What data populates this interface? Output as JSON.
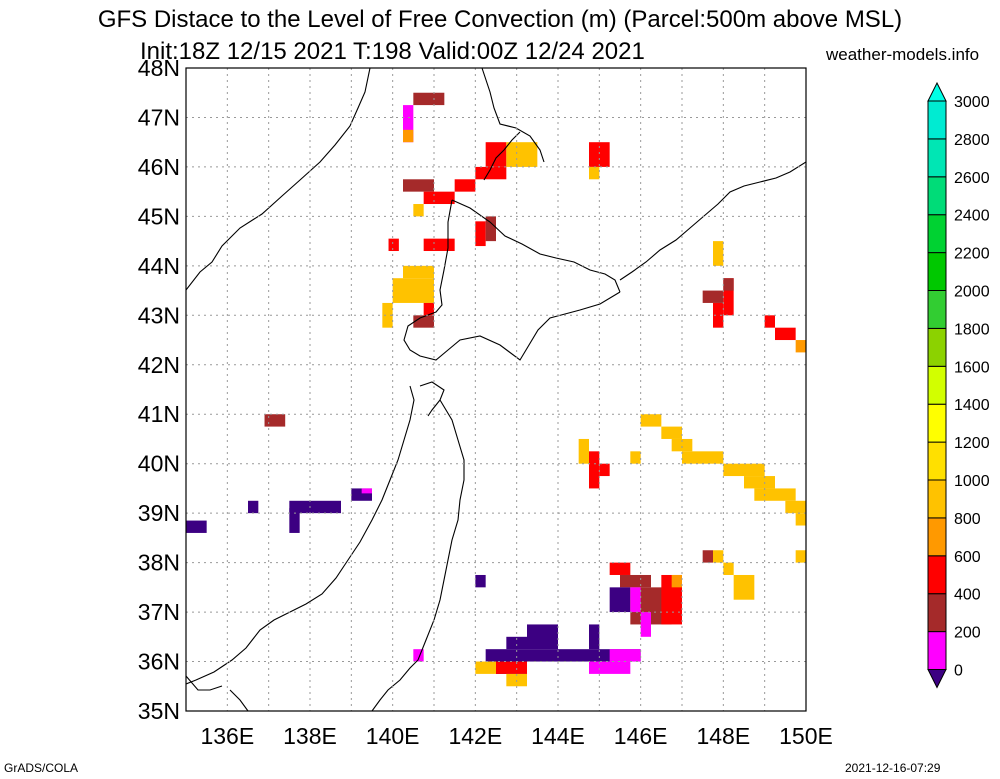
{
  "title": "GFS Distace to the Level of Free Convection (m) (Parcel:500m above MSL)",
  "subtitle": "Init:18Z 12/15 2021 T:198 Valid:00Z 12/24 2021",
  "credit": "weather-models.info",
  "footer_left": "GrADS/COLA",
  "footer_right": "2021-12-16-07:29",
  "map": {
    "lon_range": [
      135,
      150
    ],
    "lat_range": [
      35,
      48
    ],
    "lon_labels": [
      "136E",
      "138E",
      "140E",
      "142E",
      "144E",
      "146E",
      "148E",
      "150E"
    ],
    "lat_labels": [
      "35N",
      "36N",
      "37N",
      "38N",
      "39N",
      "40N",
      "41N",
      "42N",
      "43N",
      "44N",
      "45N",
      "46N",
      "47N",
      "48N"
    ]
  },
  "colorbar": {
    "labels": [
      "0",
      "200",
      "400",
      "600",
      "800",
      "1000",
      "1200",
      "1400",
      "1600",
      "1800",
      "2000",
      "2200",
      "2400",
      "2600",
      "2800",
      "3000"
    ],
    "colors": [
      "#3c0082",
      "#ff00ff",
      "#a52a2a",
      "#ff0000",
      "#ff9900",
      "#ffc200",
      "#ffe000",
      "#ffff00",
      "#d2ff00",
      "#8cd200",
      "#32cd32",
      "#00c800",
      "#00d232",
      "#00dc78",
      "#00e6b4",
      "#00ebd2",
      "#00ffe6"
    ]
  },
  "colors": {
    "purple": "#3c0082",
    "magenta": "#ff00ff",
    "brown": "#a52a2a",
    "red": "#ff0000",
    "orange": "#ff9900",
    "amber": "#ffc200"
  },
  "cells": [
    {
      "lon": 135.0,
      "lat": 38.6,
      "w": 0.5,
      "h": 0.25,
      "c": "purple"
    },
    {
      "lon": 136.5,
      "lat": 39.0,
      "w": 0.25,
      "h": 0.25,
      "c": "purple"
    },
    {
      "lon": 137.5,
      "lat": 38.6,
      "w": 0.25,
      "h": 0.5,
      "c": "purple"
    },
    {
      "lon": 137.5,
      "lat": 39.0,
      "w": 1.25,
      "h": 0.25,
      "c": "purple"
    },
    {
      "lon": 139.0,
      "lat": 39.25,
      "w": 0.5,
      "h": 0.25,
      "c": "purple"
    },
    {
      "lon": 139.25,
      "lat": 39.4,
      "w": 0.25,
      "h": 0.1,
      "c": "magenta"
    },
    {
      "lon": 136.9,
      "lat": 40.75,
      "w": 0.5,
      "h": 0.25,
      "c": "brown"
    },
    {
      "lon": 139.75,
      "lat": 42.75,
      "w": 0.25,
      "h": 0.5,
      "c": "amber"
    },
    {
      "lon": 140.0,
      "lat": 43.25,
      "w": 1.0,
      "h": 0.5,
      "c": "amber"
    },
    {
      "lon": 140.25,
      "lat": 43.75,
      "w": 0.75,
      "h": 0.25,
      "c": "amber"
    },
    {
      "lon": 140.5,
      "lat": 42.75,
      "w": 0.5,
      "h": 0.25,
      "c": "brown"
    },
    {
      "lon": 140.75,
      "lat": 43.0,
      "w": 0.25,
      "h": 0.25,
      "c": "red"
    },
    {
      "lon": 139.9,
      "lat": 44.3,
      "w": 0.25,
      "h": 0.25,
      "c": "red"
    },
    {
      "lon": 140.75,
      "lat": 44.3,
      "w": 0.75,
      "h": 0.25,
      "c": "red"
    },
    {
      "lon": 140.5,
      "lat": 45.0,
      "w": 0.25,
      "h": 0.25,
      "c": "amber"
    },
    {
      "lon": 140.25,
      "lat": 45.5,
      "w": 0.75,
      "h": 0.25,
      "c": "brown"
    },
    {
      "lon": 140.75,
      "lat": 45.25,
      "w": 0.75,
      "h": 0.25,
      "c": "red"
    },
    {
      "lon": 141.5,
      "lat": 45.5,
      "w": 0.5,
      "h": 0.25,
      "c": "red"
    },
    {
      "lon": 142.0,
      "lat": 45.75,
      "w": 0.75,
      "h": 0.25,
      "c": "red"
    },
    {
      "lon": 142.0,
      "lat": 44.4,
      "w": 0.25,
      "h": 0.5,
      "c": "red"
    },
    {
      "lon": 142.25,
      "lat": 44.5,
      "w": 0.25,
      "h": 0.5,
      "c": "brown"
    },
    {
      "lon": 142.25,
      "lat": 46.0,
      "w": 0.5,
      "h": 0.5,
      "c": "red"
    },
    {
      "lon": 142.75,
      "lat": 46.0,
      "w": 0.75,
      "h": 0.5,
      "c": "amber"
    },
    {
      "lon": 144.75,
      "lat": 46.0,
      "w": 0.5,
      "h": 0.5,
      "c": "red"
    },
    {
      "lon": 144.75,
      "lat": 45.75,
      "w": 0.25,
      "h": 0.25,
      "c": "amber"
    },
    {
      "lon": 140.25,
      "lat": 46.5,
      "w": 0.25,
      "h": 0.75,
      "c": "magenta"
    },
    {
      "lon": 140.5,
      "lat": 47.25,
      "w": 0.75,
      "h": 0.25,
      "c": "brown"
    },
    {
      "lon": 140.25,
      "lat": 46.5,
      "w": 0.25,
      "h": 0.25,
      "c": "orange"
    },
    {
      "lon": 147.75,
      "lat": 44.0,
      "w": 0.25,
      "h": 0.5,
      "c": "amber"
    },
    {
      "lon": 147.5,
      "lat": 43.25,
      "w": 0.5,
      "h": 0.25,
      "c": "brown"
    },
    {
      "lon": 147.75,
      "lat": 42.75,
      "w": 0.25,
      "h": 0.5,
      "c": "red"
    },
    {
      "lon": 148.0,
      "lat": 43.0,
      "w": 0.25,
      "h": 0.75,
      "c": "red"
    },
    {
      "lon": 148.0,
      "lat": 43.5,
      "w": 0.25,
      "h": 0.25,
      "c": "brown"
    },
    {
      "lon": 149.0,
      "lat": 42.75,
      "w": 0.25,
      "h": 0.25,
      "c": "red"
    },
    {
      "lon": 149.25,
      "lat": 42.5,
      "w": 0.5,
      "h": 0.25,
      "c": "red"
    },
    {
      "lon": 149.75,
      "lat": 42.25,
      "w": 0.25,
      "h": 0.25,
      "c": "orange"
    },
    {
      "lon": 144.5,
      "lat": 40.0,
      "w": 0.25,
      "h": 0.5,
      "c": "amber"
    },
    {
      "lon": 144.75,
      "lat": 39.5,
      "w": 0.25,
      "h": 0.75,
      "c": "red"
    },
    {
      "lon": 145.0,
      "lat": 39.75,
      "w": 0.25,
      "h": 0.25,
      "c": "red"
    },
    {
      "lon": 146.0,
      "lat": 40.75,
      "w": 0.5,
      "h": 0.25,
      "c": "amber"
    },
    {
      "lon": 146.5,
      "lat": 40.5,
      "w": 0.5,
      "h": 0.25,
      "c": "amber"
    },
    {
      "lon": 146.75,
      "lat": 40.25,
      "w": 0.5,
      "h": 0.25,
      "c": "amber"
    },
    {
      "lon": 145.75,
      "lat": 40.0,
      "w": 0.25,
      "h": 0.25,
      "c": "amber"
    },
    {
      "lon": 147.0,
      "lat": 40.0,
      "w": 1.0,
      "h": 0.25,
      "c": "amber"
    },
    {
      "lon": 148.0,
      "lat": 39.75,
      "w": 1.0,
      "h": 0.25,
      "c": "amber"
    },
    {
      "lon": 148.5,
      "lat": 39.5,
      "w": 0.75,
      "h": 0.25,
      "c": "amber"
    },
    {
      "lon": 148.75,
      "lat": 39.25,
      "w": 1.0,
      "h": 0.25,
      "c": "amber"
    },
    {
      "lon": 149.5,
      "lat": 39.0,
      "w": 0.5,
      "h": 0.25,
      "c": "amber"
    },
    {
      "lon": 149.75,
      "lat": 38.75,
      "w": 0.25,
      "h": 0.25,
      "c": "amber"
    },
    {
      "lon": 149.75,
      "lat": 38.0,
      "w": 0.25,
      "h": 0.25,
      "c": "amber"
    },
    {
      "lon": 147.5,
      "lat": 38.0,
      "w": 0.25,
      "h": 0.25,
      "c": "brown"
    },
    {
      "lon": 147.75,
      "lat": 38.0,
      "w": 0.25,
      "h": 0.25,
      "c": "amber"
    },
    {
      "lon": 148.0,
      "lat": 37.75,
      "w": 0.25,
      "h": 0.25,
      "c": "amber"
    },
    {
      "lon": 148.25,
      "lat": 37.25,
      "w": 0.5,
      "h": 0.5,
      "c": "amber"
    },
    {
      "lon": 145.25,
      "lat": 37.75,
      "w": 0.5,
      "h": 0.25,
      "c": "red"
    },
    {
      "lon": 145.5,
      "lat": 37.5,
      "w": 0.75,
      "h": 0.25,
      "c": "brown"
    },
    {
      "lon": 145.25,
      "lat": 37.0,
      "w": 0.5,
      "h": 0.5,
      "c": "purple"
    },
    {
      "lon": 145.75,
      "lat": 36.75,
      "w": 1.0,
      "h": 0.75,
      "c": "brown"
    },
    {
      "lon": 146.5,
      "lat": 36.75,
      "w": 0.5,
      "h": 1.0,
      "c": "red"
    },
    {
      "lon": 146.75,
      "lat": 37.5,
      "w": 0.25,
      "h": 0.25,
      "c": "orange"
    },
    {
      "lon": 145.75,
      "lat": 37.0,
      "w": 0.25,
      "h": 0.5,
      "c": "magenta"
    },
    {
      "lon": 146.0,
      "lat": 36.5,
      "w": 0.25,
      "h": 0.5,
      "c": "magenta"
    },
    {
      "lon": 142.0,
      "lat": 37.5,
      "w": 0.25,
      "h": 0.25,
      "c": "purple"
    },
    {
      "lon": 143.25,
      "lat": 36.25,
      "w": 0.75,
      "h": 0.5,
      "c": "purple"
    },
    {
      "lon": 142.75,
      "lat": 36.25,
      "w": 0.5,
      "h": 0.25,
      "c": "purple"
    },
    {
      "lon": 142.25,
      "lat": 36.0,
      "w": 3.75,
      "h": 0.25,
      "c": "purple"
    },
    {
      "lon": 142.5,
      "lat": 35.75,
      "w": 0.75,
      "h": 0.25,
      "c": "purple"
    },
    {
      "lon": 144.75,
      "lat": 36.25,
      "w": 0.25,
      "h": 0.5,
      "c": "purple"
    },
    {
      "lon": 144.75,
      "lat": 35.75,
      "w": 1.0,
      "h": 0.25,
      "c": "magenta"
    },
    {
      "lon": 145.25,
      "lat": 36.0,
      "w": 0.75,
      "h": 0.25,
      "c": "magenta"
    },
    {
      "lon": 142.0,
      "lat": 35.75,
      "w": 0.5,
      "h": 0.25,
      "c": "amber"
    },
    {
      "lon": 142.5,
      "lat": 35.75,
      "w": 0.75,
      "h": 0.25,
      "c": "red"
    },
    {
      "lon": 142.75,
      "lat": 35.5,
      "w": 0.5,
      "h": 0.25,
      "c": "amber"
    },
    {
      "lon": 140.5,
      "lat": 36.0,
      "w": 0.25,
      "h": 0.25,
      "c": "magenta"
    }
  ]
}
